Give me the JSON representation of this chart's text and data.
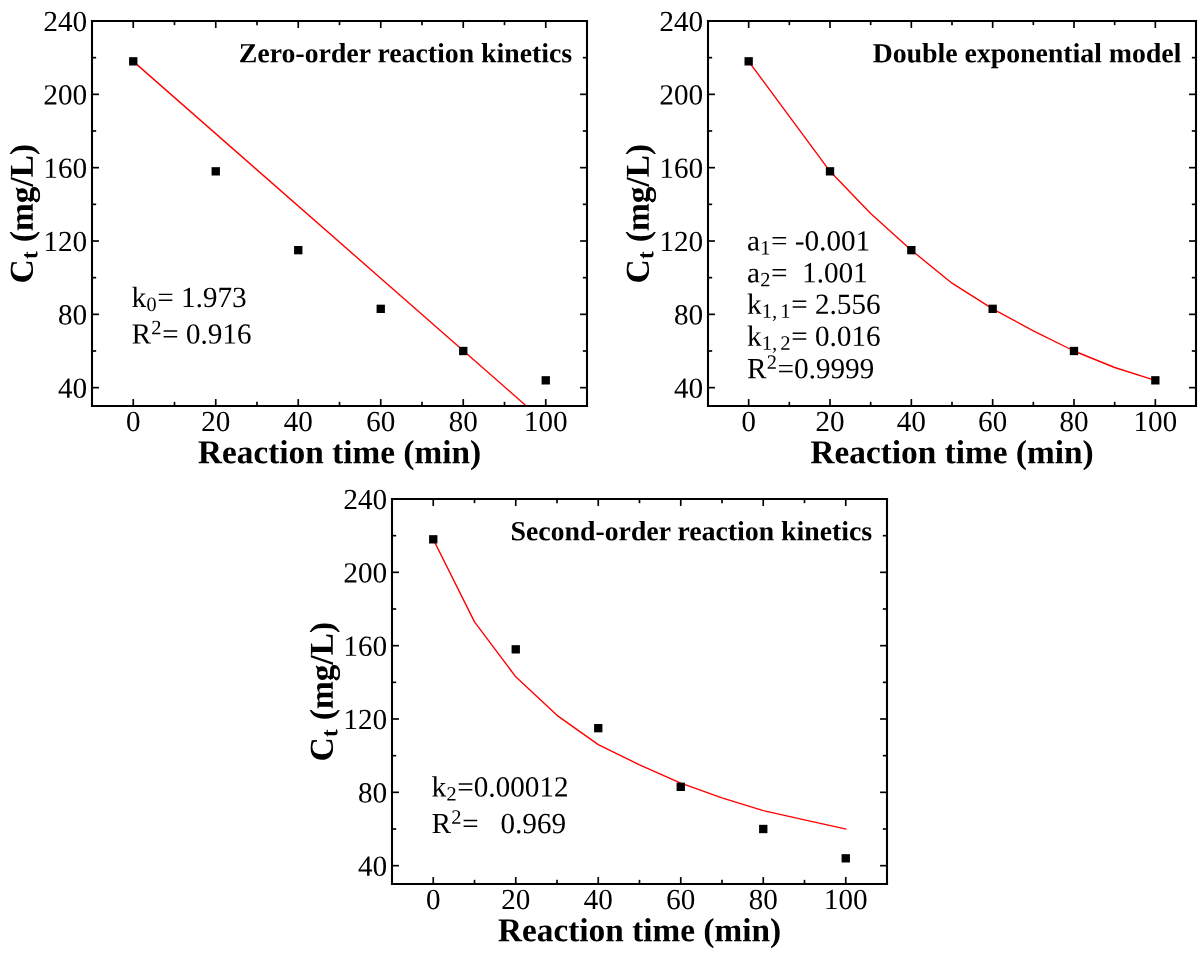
{
  "chart_data": [
    {
      "type": "scatter",
      "title": "Zero-order reaction kinetics",
      "xlabel": "Reaction time (min)",
      "ylabel": "C$_{t}$ (mg/L)",
      "annotations": [
        "k$_{0}$= 1.973",
        "R$^{2}$= 0.916"
      ],
      "x": [
        0,
        20,
        40,
        60,
        80,
        100
      ],
      "series": [
        {
          "color": "#000000",
          "marker": "square",
          "values": [
            218,
            158,
            115,
            83,
            60,
            44
          ]
        },
        {
          "type": "line",
          "color": "#ff0000",
          "marker": "none",
          "x": [
            0,
            95.3
          ],
          "values": [
            218,
            30
          ]
        }
      ],
      "xlim": [
        -10,
        110
      ],
      "ylim": [
        30,
        240
      ],
      "xticks": [
        0,
        20,
        40,
        60,
        80,
        100
      ],
      "yticks": [
        40,
        80,
        120,
        160,
        200,
        240
      ],
      "grid": false,
      "legend": false
    },
    {
      "type": "scatter",
      "title": "Double exponential model",
      "xlabel": "Reaction time (min)",
      "ylabel": "C$_{t}$ (mg/L)",
      "annotations": [
        "a$_{1}$= -0.001",
        "a$_{2}$=  1.001",
        "k$_{1,1}$= 2.556",
        "k$_{1,2}$= 0.016",
        "R$^{2}$=0.9999"
      ],
      "x": [
        0,
        20,
        40,
        60,
        80,
        100
      ],
      "series": [
        {
          "color": "#000000",
          "marker": "square",
          "values": [
            218,
            158,
            115,
            83,
            60,
            44
          ]
        },
        {
          "type": "line",
          "color": "#ff0000",
          "marker": "none",
          "x": [
            0,
            10,
            20,
            30,
            40,
            50,
            60,
            70,
            80,
            90,
            100
          ],
          "values": [
            218,
            188,
            158,
            135,
            115,
            97,
            83,
            71,
            60,
            51,
            44
          ]
        }
      ],
      "xlim": [
        -10,
        110
      ],
      "ylim": [
        30,
        240
      ],
      "xticks": [
        0,
        20,
        40,
        60,
        80,
        100
      ],
      "yticks": [
        40,
        80,
        120,
        160,
        200,
        240
      ],
      "grid": false,
      "legend": false
    },
    {
      "type": "scatter",
      "title": "Second-order reaction kinetics",
      "xlabel": "Reaction time (min)",
      "ylabel": "C$_{t}$ (mg/L)",
      "annotations": [
        "k$_{2}$=0.00012",
        "R$^{2}$=   0.969"
      ],
      "x": [
        0,
        20,
        40,
        60,
        80,
        100
      ],
      "series": [
        {
          "color": "#000000",
          "marker": "square",
          "values": [
            218,
            158,
            115,
            83,
            60,
            44
          ]
        },
        {
          "type": "line",
          "color": "#ff0000",
          "marker": "none",
          "x": [
            0,
            10,
            20,
            30,
            40,
            50,
            60,
            70,
            80,
            90,
            100
          ],
          "values": [
            218,
            173,
            143,
            122,
            106,
            95,
            85,
            77,
            70,
            65,
            60
          ]
        }
      ],
      "xlim": [
        -10,
        110
      ],
      "ylim": [
        30,
        240
      ],
      "xticks": [
        0,
        20,
        40,
        60,
        80,
        100
      ],
      "yticks": [
        40,
        80,
        120,
        160,
        200,
        240
      ],
      "grid": false,
      "legend": false
    }
  ]
}
